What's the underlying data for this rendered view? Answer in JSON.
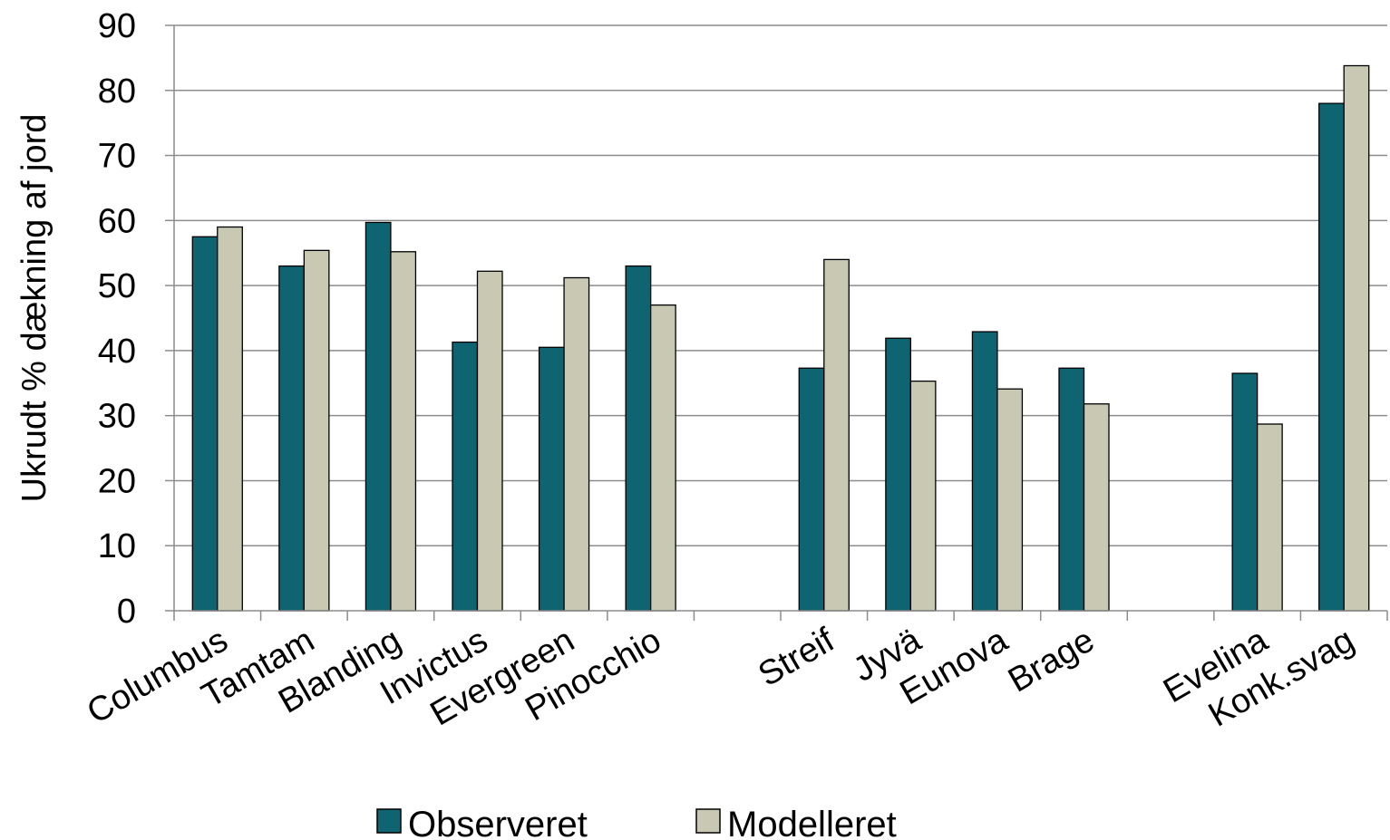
{
  "chart_data": {
    "type": "bar",
    "title": "",
    "xlabel": "",
    "ylabel": "Ukrudt % dækning af jord",
    "ylim": [
      0,
      90
    ],
    "yticks": [
      0,
      10,
      20,
      30,
      40,
      50,
      60,
      70,
      80,
      90
    ],
    "grid": "horizontal",
    "legend": "bottom",
    "categories": [
      "Columbus",
      "Tamtam",
      "Blanding",
      "Invictus",
      "Evergreen",
      "Pinocchio",
      "",
      "Streif",
      "Jyvä",
      "Eunova",
      "Brage",
      "",
      "Evelina",
      "Konk.svag"
    ],
    "series": [
      {
        "name": "Observeret",
        "color": "#0e6471",
        "values": [
          57.5,
          53,
          59.7,
          41.3,
          40.5,
          53,
          null,
          37.3,
          41.9,
          42.9,
          37.3,
          null,
          36.5,
          78
        ]
      },
      {
        "name": "Modelleret",
        "color": "#c9c8b3",
        "values": [
          59,
          55.4,
          55.2,
          52.2,
          51.2,
          47,
          null,
          54,
          35.3,
          34.1,
          31.8,
          null,
          28.7,
          83.8
        ]
      }
    ]
  }
}
